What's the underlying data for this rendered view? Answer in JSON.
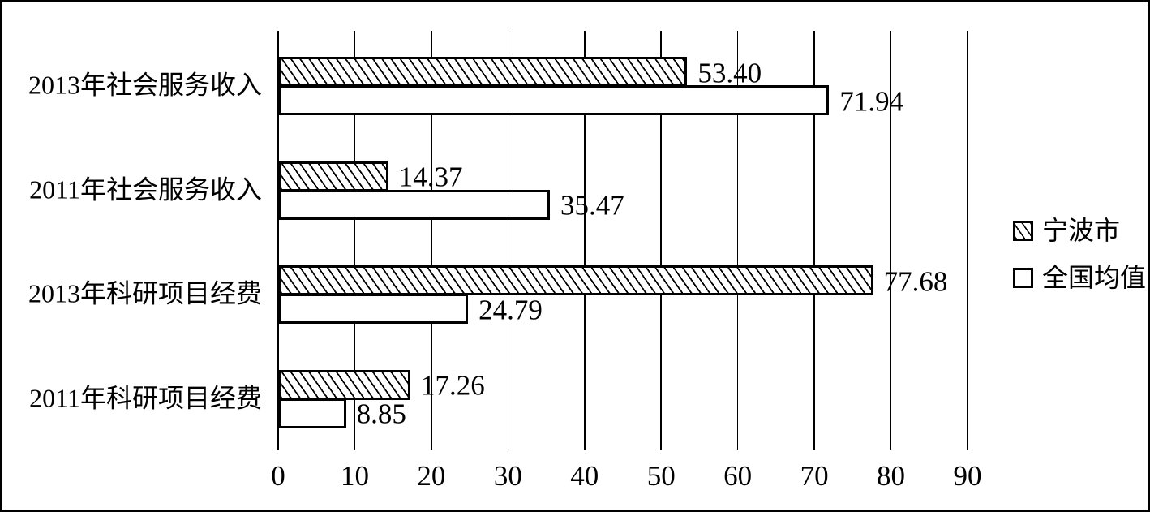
{
  "chart_data": {
    "type": "bar",
    "orientation": "horizontal",
    "title": "",
    "categories": [
      "2013年社会服务收入",
      "2011年社会服务收入",
      "2013年科研项目经费",
      "2011年科研项目经费"
    ],
    "series": [
      {
        "name": "宁波市",
        "pattern": "diagonal-hatch",
        "values": [
          53.4,
          14.37,
          77.68,
          17.26
        ],
        "labels": [
          "53.40",
          "14.37",
          "77.68",
          "17.26"
        ]
      },
      {
        "name": "全国均值",
        "pattern": "white",
        "values": [
          71.94,
          35.47,
          24.79,
          8.85
        ],
        "labels": [
          "71.94",
          "35.47",
          "24.79",
          "8.85"
        ]
      }
    ],
    "x_axis": {
      "min": 0,
      "max": 90,
      "tick_step": 10,
      "tick_labels": [
        "0",
        "10",
        "20",
        "30",
        "40",
        "50",
        "60",
        "70",
        "80",
        "90"
      ]
    },
    "grid": "vertical-gridlines",
    "legend_position": "right",
    "colors": {
      "foreground": "#000000",
      "background": "#ffffff"
    }
  }
}
